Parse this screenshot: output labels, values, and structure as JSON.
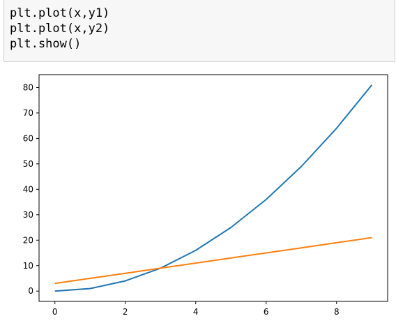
{
  "code_cell": {
    "lines": [
      "plt.plot(x,y1)",
      "plt.plot(x,y2)",
      "plt.show()"
    ]
  },
  "chart_data": {
    "type": "line",
    "x": [
      0,
      1,
      2,
      3,
      4,
      5,
      6,
      7,
      8,
      9
    ],
    "series": [
      {
        "values": [
          0,
          1,
          4,
          9,
          16,
          25,
          36,
          49,
          64,
          81
        ],
        "color": "#1f77b4"
      },
      {
        "values": [
          3,
          5,
          7,
          9,
          11,
          13,
          15,
          17,
          19,
          21
        ],
        "color": "#ff7f0e"
      }
    ],
    "xticks": [
      0,
      2,
      4,
      6,
      8
    ],
    "yticks": [
      0,
      10,
      20,
      30,
      40,
      50,
      60,
      70,
      80
    ],
    "xlim": [
      -0.45,
      9.45
    ],
    "ylim": [
      -4.05,
      85.05
    ],
    "grid": false,
    "title": "",
    "xlabel": "",
    "ylabel": ""
  }
}
